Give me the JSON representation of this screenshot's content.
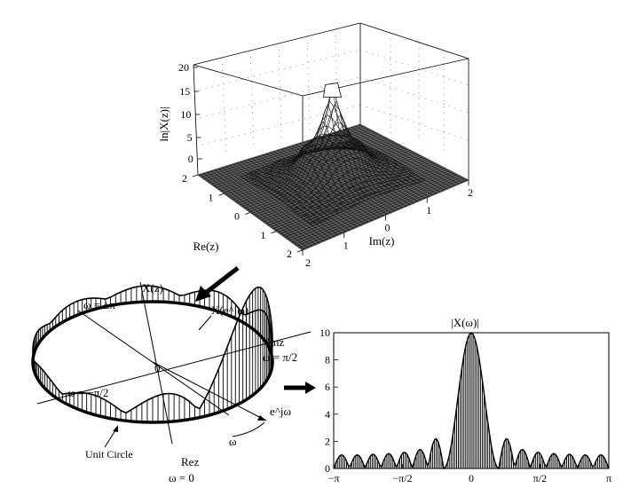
{
  "surface_plot": {
    "zlabel": "ln|X(z)|",
    "ztick_labels": [
      "20",
      "15",
      "10",
      "5",
      "0"
    ],
    "re_axis_label": "Re(z)",
    "re_tick_labels": [
      "2",
      "1",
      "0",
      "1",
      "2"
    ],
    "im_axis_label": "Im(z)",
    "im_tick_labels": [
      "2",
      "1",
      "0",
      "1",
      "2"
    ]
  },
  "unit_circle_view": {
    "label_omega_pm_pi": "ω = ±π",
    "label_Xz": "X(z)",
    "label_Xejw": "X(e^jω)",
    "label_imz": "Imz",
    "label_omega_pi2": "ω = π/2",
    "label_omega_mpi2": "ω = −π/2",
    "label_zero": "0",
    "label_ejw": "e^jω",
    "label_omega": "ω",
    "label_unit_circle": "Unit Circle",
    "label_rez": "Rez",
    "label_omega_zero": "ω = 0"
  },
  "chart_data": {
    "type": "bar",
    "title": "|X(ω)|",
    "xlabel": "",
    "ylabel": "",
    "x_tick_labels": [
      "−π",
      "−π/2",
      "0",
      "π/2",
      "π"
    ],
    "y_tick_labels": [
      "10",
      "8",
      "6",
      "4",
      "2",
      "0"
    ],
    "ylim": [
      0,
      10
    ],
    "xlim": [
      -3.1416,
      3.1416
    ],
    "main_lobe_peak": 10,
    "main_lobe_halfwidth": 0.6283,
    "side_lobe_peaks": [
      2.2,
      1.4,
      1.2,
      1.1,
      1.05,
      1.0,
      1.0
    ]
  }
}
